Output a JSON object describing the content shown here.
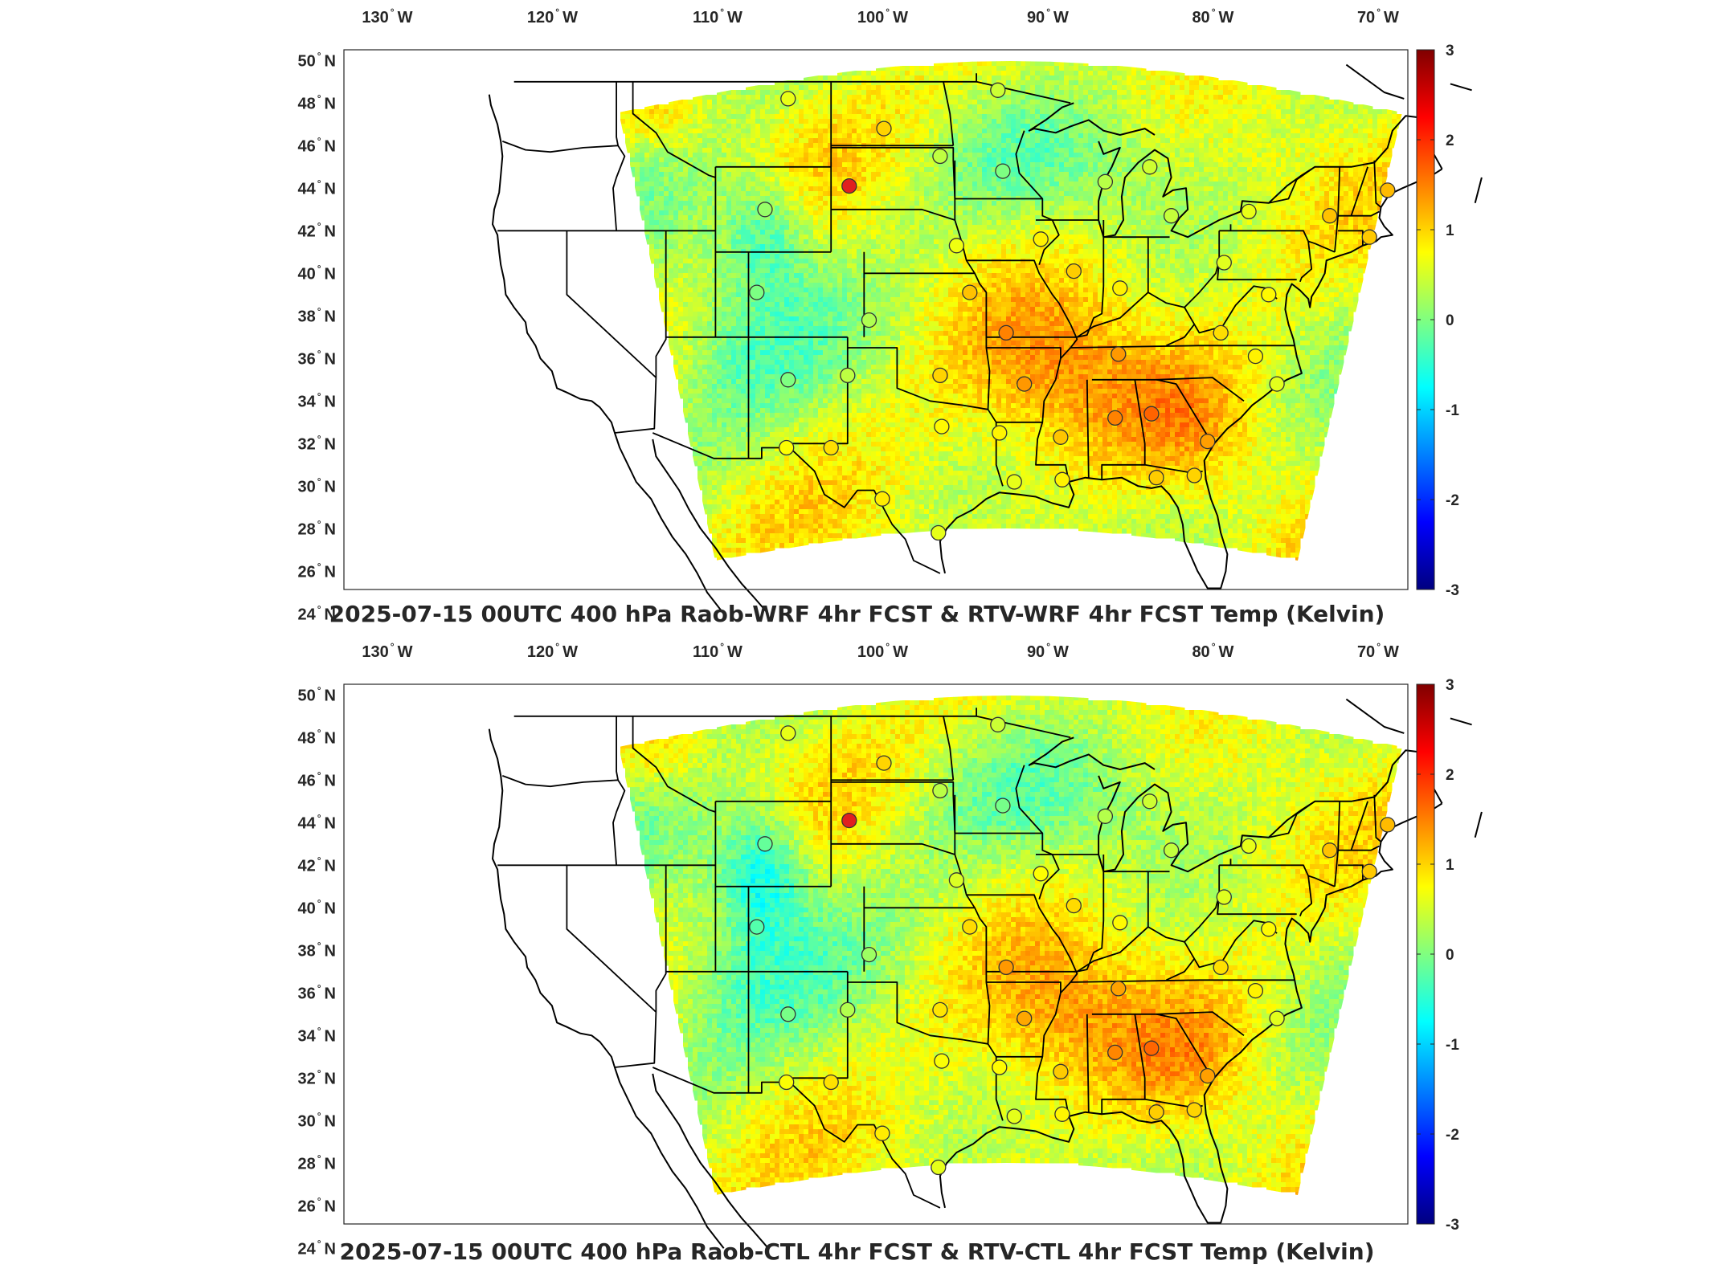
{
  "panels": [
    {
      "title": "2025-07-15 00UTC 400 hPa Raob-WRF 4hr FCST & RTV-WRF 4hr FCST Temp (Kelvin)",
      "variant": "wrf"
    },
    {
      "title": "2025-07-15 00UTC 400 hPa Raob-CTL 4hr FCST & RTV-CTL 4hr FCST Temp (Kelvin)",
      "variant": "ctl"
    }
  ],
  "lon_labels": [
    {
      "deg": "130",
      "dir": "W"
    },
    {
      "deg": "120",
      "dir": "W"
    },
    {
      "deg": "110",
      "dir": "W"
    },
    {
      "deg": "100",
      "dir": "W"
    },
    {
      "deg": "90",
      "dir": "W"
    },
    {
      "deg": "80",
      "dir": "W"
    },
    {
      "deg": "70",
      "dir": "W"
    }
  ],
  "lat_labels": [
    {
      "deg": "50",
      "dir": "N"
    },
    {
      "deg": "48",
      "dir": "N"
    },
    {
      "deg": "46",
      "dir": "N"
    },
    {
      "deg": "44",
      "dir": "N"
    },
    {
      "deg": "42",
      "dir": "N"
    },
    {
      "deg": "40",
      "dir": "N"
    },
    {
      "deg": "38",
      "dir": "N"
    },
    {
      "deg": "36",
      "dir": "N"
    },
    {
      "deg": "34",
      "dir": "N"
    },
    {
      "deg": "32",
      "dir": "N"
    },
    {
      "deg": "30",
      "dir": "N"
    },
    {
      "deg": "28",
      "dir": "N"
    },
    {
      "deg": "26",
      "dir": "N"
    },
    {
      "deg": "24",
      "dir": "N"
    }
  ],
  "colorbar": {
    "range": [
      -3,
      3
    ],
    "ticks": [
      "3",
      "2",
      "1",
      "0",
      "-1",
      "-2",
      "-3"
    ],
    "colormap": "jet"
  },
  "colors": {
    "outlier_station": "#e0201f",
    "map_lines": "#000000",
    "yellow": "#f2e21a",
    "green": "#7fe07a",
    "orange": "#f5a020",
    "cyan": "#23c8e6",
    "blue": "#1040ff"
  },
  "stations": [
    {
      "lon": -106.6,
      "lat": 48.2
    },
    {
      "lon": -100.8,
      "lat": 46.8
    },
    {
      "lon": -97.4,
      "lat": 45.5
    },
    {
      "lon": -93.6,
      "lat": 44.8
    },
    {
      "lon": -93.9,
      "lat": 48.6
    },
    {
      "lon": -87.4,
      "lat": 44.3
    },
    {
      "lon": -84.7,
      "lat": 45.0
    },
    {
      "lon": -108.0,
      "lat": 43.0
    },
    {
      "lon": -83.4,
      "lat": 42.7
    },
    {
      "lon": -78.7,
      "lat": 42.9
    },
    {
      "lon": -73.8,
      "lat": 42.7
    },
    {
      "lon": -70.3,
      "lat": 43.9
    },
    {
      "lon": -71.4,
      "lat": 41.7
    },
    {
      "lon": -91.3,
      "lat": 41.6
    },
    {
      "lon": -89.3,
      "lat": 40.1
    },
    {
      "lon": -96.4,
      "lat": 41.3
    },
    {
      "lon": -86.5,
      "lat": 39.3
    },
    {
      "lon": -80.2,
      "lat": 40.5
    },
    {
      "lon": -77.5,
      "lat": 39.0
    },
    {
      "lon": -108.5,
      "lat": 39.1
    },
    {
      "lon": -101.7,
      "lat": 37.8
    },
    {
      "lon": -95.6,
      "lat": 39.1
    },
    {
      "lon": -93.4,
      "lat": 37.2
    },
    {
      "lon": -86.6,
      "lat": 36.2
    },
    {
      "lon": -80.4,
      "lat": 37.2
    },
    {
      "lon": -78.3,
      "lat": 36.1
    },
    {
      "lon": -103.0,
      "lat": 35.2
    },
    {
      "lon": -106.6,
      "lat": 35.0
    },
    {
      "lon": -97.4,
      "lat": 35.2
    },
    {
      "lon": -92.3,
      "lat": 34.8
    },
    {
      "lon": -77.0,
      "lat": 34.8
    },
    {
      "lon": -84.6,
      "lat": 33.4
    },
    {
      "lon": -86.8,
      "lat": 33.2
    },
    {
      "lon": -97.3,
      "lat": 32.8
    },
    {
      "lon": -93.8,
      "lat": 32.5
    },
    {
      "lon": -90.1,
      "lat": 32.3
    },
    {
      "lon": -81.2,
      "lat": 32.1
    },
    {
      "lon": -104.0,
      "lat": 31.8
    },
    {
      "lon": -106.7,
      "lat": 31.8
    },
    {
      "lon": -92.9,
      "lat": 30.2
    },
    {
      "lon": -90.0,
      "lat": 30.3
    },
    {
      "lon": -84.3,
      "lat": 30.4
    },
    {
      "lon": -82.0,
      "lat": 30.5
    },
    {
      "lon": -100.9,
      "lat": 29.4
    },
    {
      "lon": -97.5,
      "lat": 27.8
    },
    {
      "lon": -102.9,
      "lat": 44.1,
      "outlier": true
    }
  ]
}
